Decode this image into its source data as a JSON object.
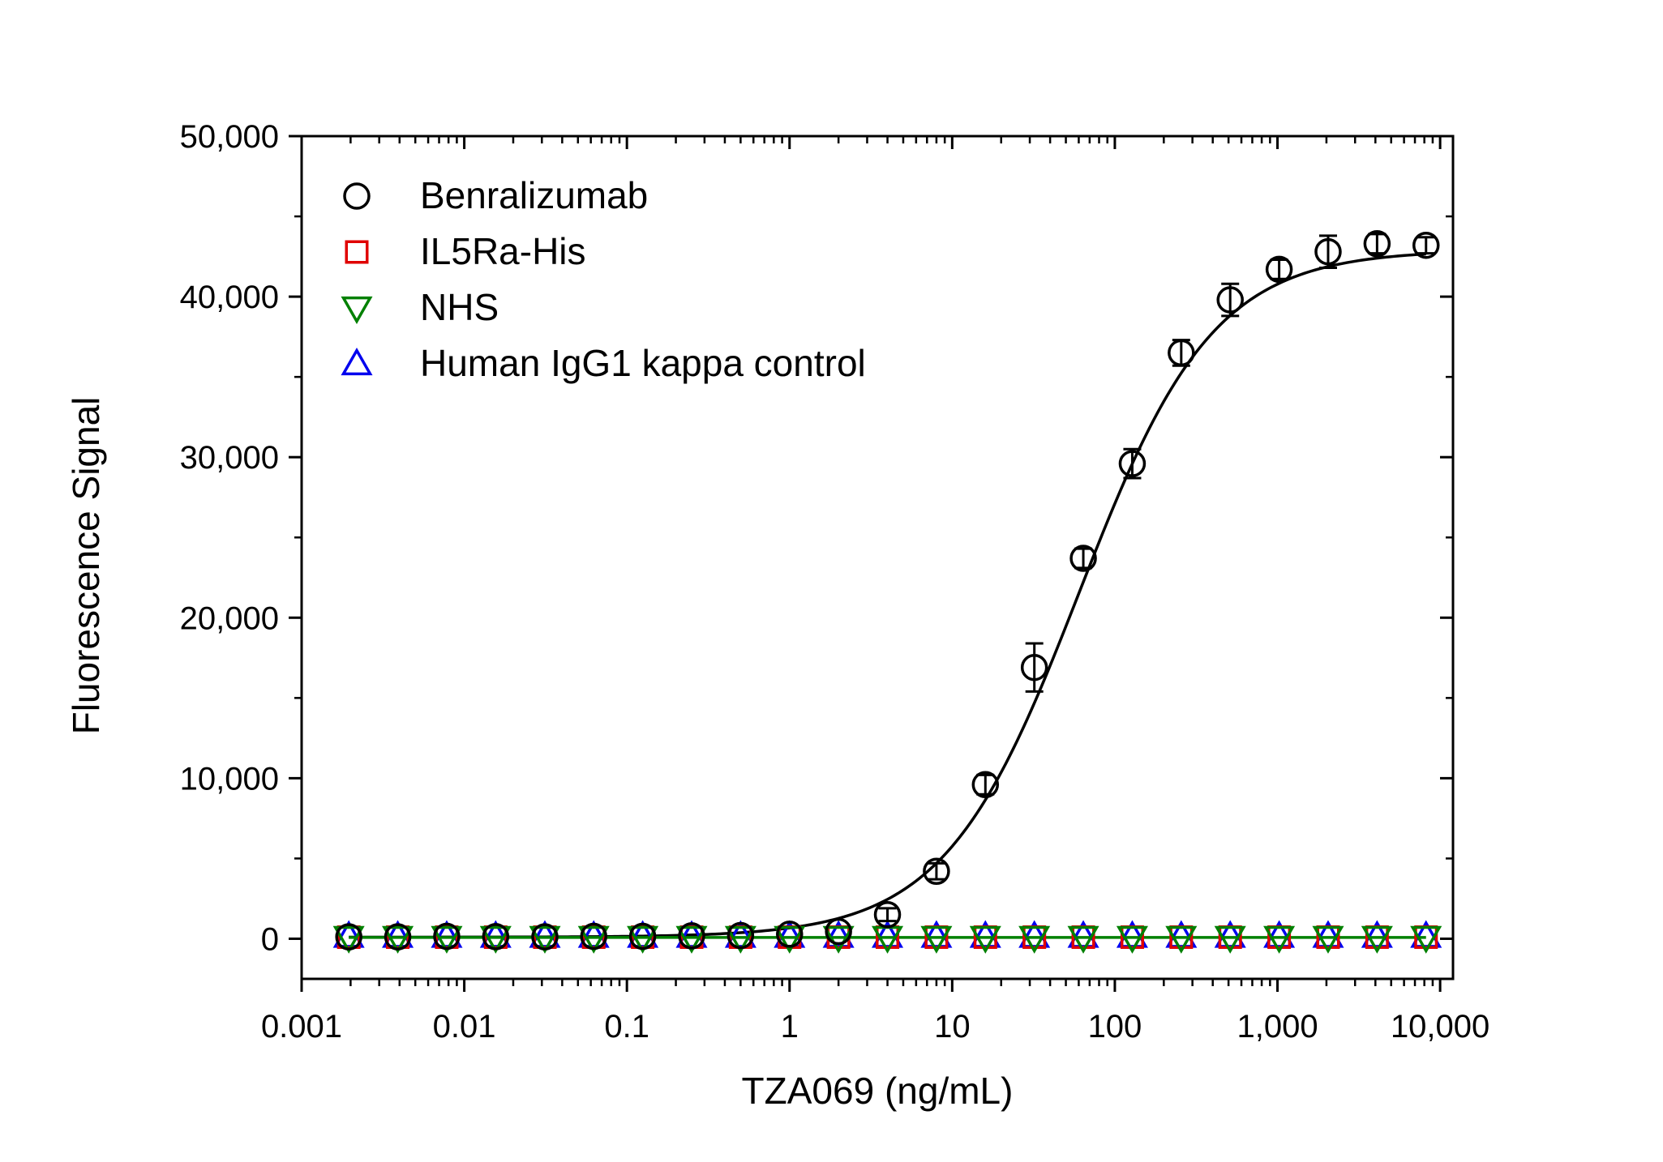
{
  "chart_data": {
    "type": "scatter",
    "xlabel": "TZA069 (ng/mL)",
    "ylabel": "Fluorescence Signal",
    "x_scale": "log",
    "xlim": [
      0.001,
      12000
    ],
    "ylim": [
      -2500,
      50000
    ],
    "x_ticks": [
      {
        "value": 0.001,
        "label": "0.001"
      },
      {
        "value": 0.01,
        "label": "0.01"
      },
      {
        "value": 0.1,
        "label": "0.1"
      },
      {
        "value": 1,
        "label": "1"
      },
      {
        "value": 10,
        "label": "10"
      },
      {
        "value": 100,
        "label": "100"
      },
      {
        "value": 1000,
        "label": "1,000"
      },
      {
        "value": 10000,
        "label": "10,000"
      }
    ],
    "y_ticks": [
      {
        "value": 0,
        "label": "0"
      },
      {
        "value": 10000,
        "label": "10,000"
      },
      {
        "value": 20000,
        "label": "20,000"
      },
      {
        "value": 30000,
        "label": "30,000"
      },
      {
        "value": 40000,
        "label": "40,000"
      },
      {
        "value": 50000,
        "label": "50,000"
      }
    ],
    "legend_position": "top-left",
    "grid": false,
    "series": [
      {
        "name": "Benralizumab",
        "marker": "circle",
        "color": "#000000",
        "x": [
          0.00195,
          0.0039,
          0.0078,
          0.0156,
          0.0313,
          0.0625,
          0.125,
          0.25,
          0.5,
          1,
          2,
          4,
          8,
          16,
          32,
          64,
          128,
          256,
          512,
          1024,
          2048,
          4096,
          8192
        ],
        "y": [
          120,
          120,
          150,
          130,
          120,
          150,
          150,
          180,
          200,
          280,
          450,
          1500,
          4200,
          9600,
          16900,
          23700,
          29600,
          36500,
          39800,
          41700,
          42800,
          43300,
          43200
        ],
        "err": [
          0,
          0,
          0,
          0,
          0,
          0,
          0,
          0,
          0,
          0,
          0,
          400,
          500,
          600,
          1500,
          600,
          900,
          800,
          1000,
          600,
          1000,
          600,
          500
        ]
      },
      {
        "name": "IL5Ra-His",
        "marker": "square",
        "color": "#e00000",
        "x": [
          0.00195,
          0.0039,
          0.0078,
          0.0156,
          0.0313,
          0.0625,
          0.125,
          0.25,
          0.5,
          1,
          2,
          4,
          8,
          16,
          32,
          64,
          128,
          256,
          512,
          1024,
          2048,
          4096,
          8192
        ],
        "y": [
          100,
          100,
          100,
          100,
          100,
          100,
          100,
          100,
          100,
          100,
          100,
          100,
          100,
          100,
          100,
          100,
          100,
          100,
          100,
          100,
          100,
          100,
          100
        ]
      },
      {
        "name": "NHS",
        "marker": "triangle-down",
        "color": "#008000",
        "x": [
          0.00195,
          0.0039,
          0.0078,
          0.0156,
          0.0313,
          0.0625,
          0.125,
          0.25,
          0.5,
          1,
          2,
          4,
          8,
          16,
          32,
          64,
          128,
          256,
          512,
          1024,
          2048,
          4096,
          8192
        ],
        "y": [
          80,
          80,
          80,
          80,
          80,
          80,
          80,
          80,
          80,
          80,
          80,
          80,
          80,
          80,
          80,
          80,
          80,
          80,
          80,
          80,
          80,
          80,
          80
        ]
      },
      {
        "name": "Human IgG1 kappa control",
        "marker": "triangle-up",
        "color": "#0000ee",
        "x": [
          0.00195,
          0.0039,
          0.0078,
          0.0156,
          0.0313,
          0.0625,
          0.125,
          0.25,
          0.5,
          1,
          2,
          4,
          8,
          16,
          32,
          64,
          128,
          256,
          512,
          1024,
          2048,
          4096,
          8192
        ],
        "y": [
          150,
          150,
          150,
          150,
          150,
          150,
          150,
          150,
          150,
          150,
          150,
          150,
          150,
          150,
          150,
          150,
          150,
          150,
          150,
          150,
          150,
          150,
          150
        ]
      }
    ],
    "fits": [
      {
        "series": "Benralizumab",
        "model": "4PL",
        "bottom": 100,
        "top": 42900,
        "ec50": 60,
        "hill": 1.05,
        "color": "#000000"
      },
      {
        "series": "NHS",
        "model": "flat",
        "value": 80,
        "color": "#008000"
      }
    ]
  }
}
